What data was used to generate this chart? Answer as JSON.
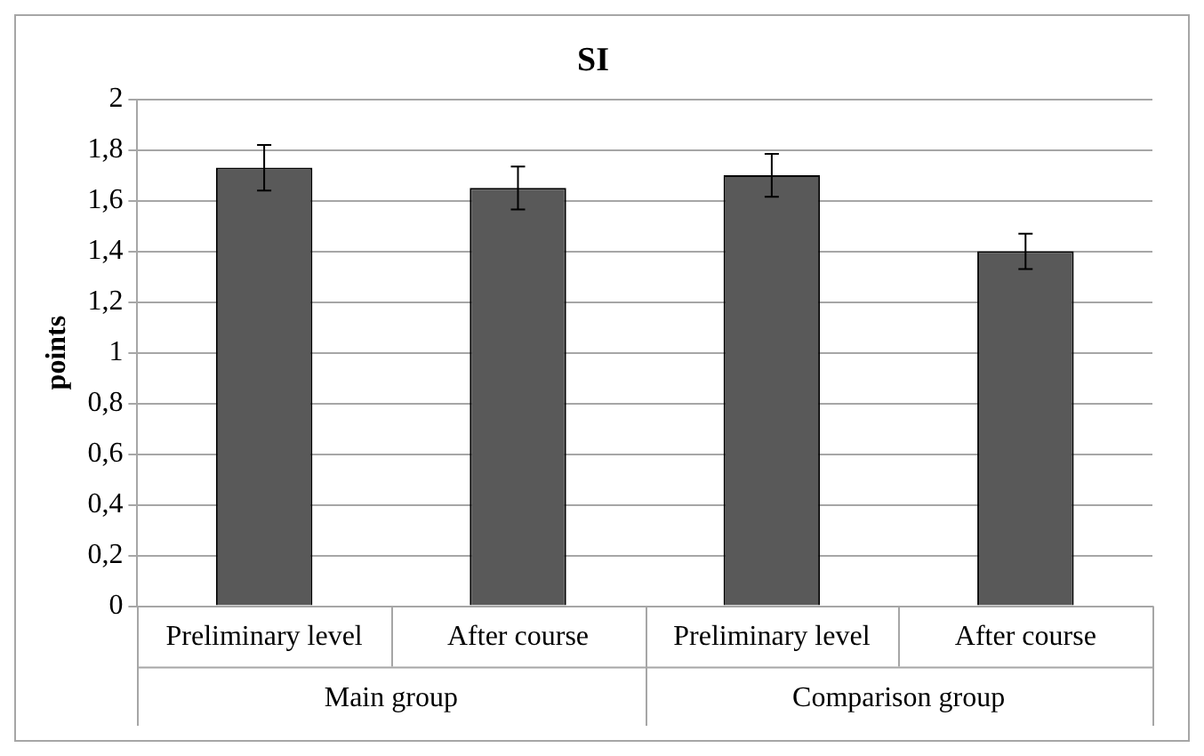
{
  "chart_data": {
    "type": "bar",
    "title": "SI",
    "ylabel": "points",
    "categories": [
      "Preliminary level",
      "After course",
      "Preliminary level",
      "After course"
    ],
    "values": [
      1.73,
      1.65,
      1.7,
      1.4
    ],
    "errors": [
      0.09,
      0.085,
      0.085,
      0.07
    ],
    "color": "#595959",
    "annotations": [
      "Main group",
      "Comparison group"
    ],
    "ylim": [
      0,
      2
    ],
    "yticks": [
      0,
      {
        "value": 0.2,
        "label": "0,2"
      },
      {
        "value": 0.4,
        "label": "0,4"
      },
      {
        "value": 0.6,
        "label": "0,6"
      },
      {
        "value": 0.8,
        "label": "0,8"
      },
      1,
      {
        "value": 1.2,
        "label": "1,2"
      },
      {
        "value": 1.4,
        "label": "1,4"
      },
      {
        "value": 1.6,
        "label": "1,6"
      },
      {
        "value": 1.8,
        "label": "1,8"
      },
      2
    ],
    "grid": "y",
    "legend": false
  }
}
